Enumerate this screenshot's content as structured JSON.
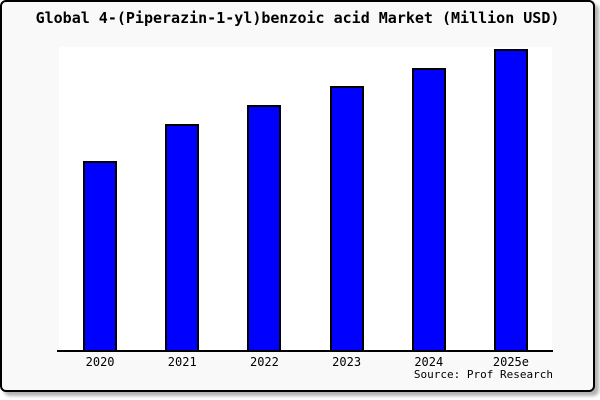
{
  "header": {
    "title": "Global 4-(Piperazin-1-yl)benzoic acid Market (Million USD)"
  },
  "footer": {
    "source": "Source: Prof Research"
  },
  "colors": {
    "bar_fill": "#0000FF",
    "bar_border": "#000000",
    "page_background": "#f9f9f9",
    "plot_background": "#ffffff",
    "frame_border": "#000000"
  },
  "chart_data": {
    "type": "bar",
    "title": "Global 4-(Piperazin-1-yl)benzoic acid Market (Million USD)",
    "categories": [
      "2020",
      "2021",
      "2022",
      "2023",
      "2024",
      "2025e"
    ],
    "values": [
      62.8,
      75.1,
      81.4,
      87.7,
      93.7,
      100
    ],
    "units": "relative index (no y-axis scale shown in chart; 2025e bar = 100)",
    "xlabel": "",
    "ylabel": "",
    "ylim": [
      0,
      101
    ],
    "grid": false,
    "legend": false,
    "y_axis_ticks": "none",
    "bar_color": "#0000FF",
    "annotation": "Source: Prof Research"
  }
}
